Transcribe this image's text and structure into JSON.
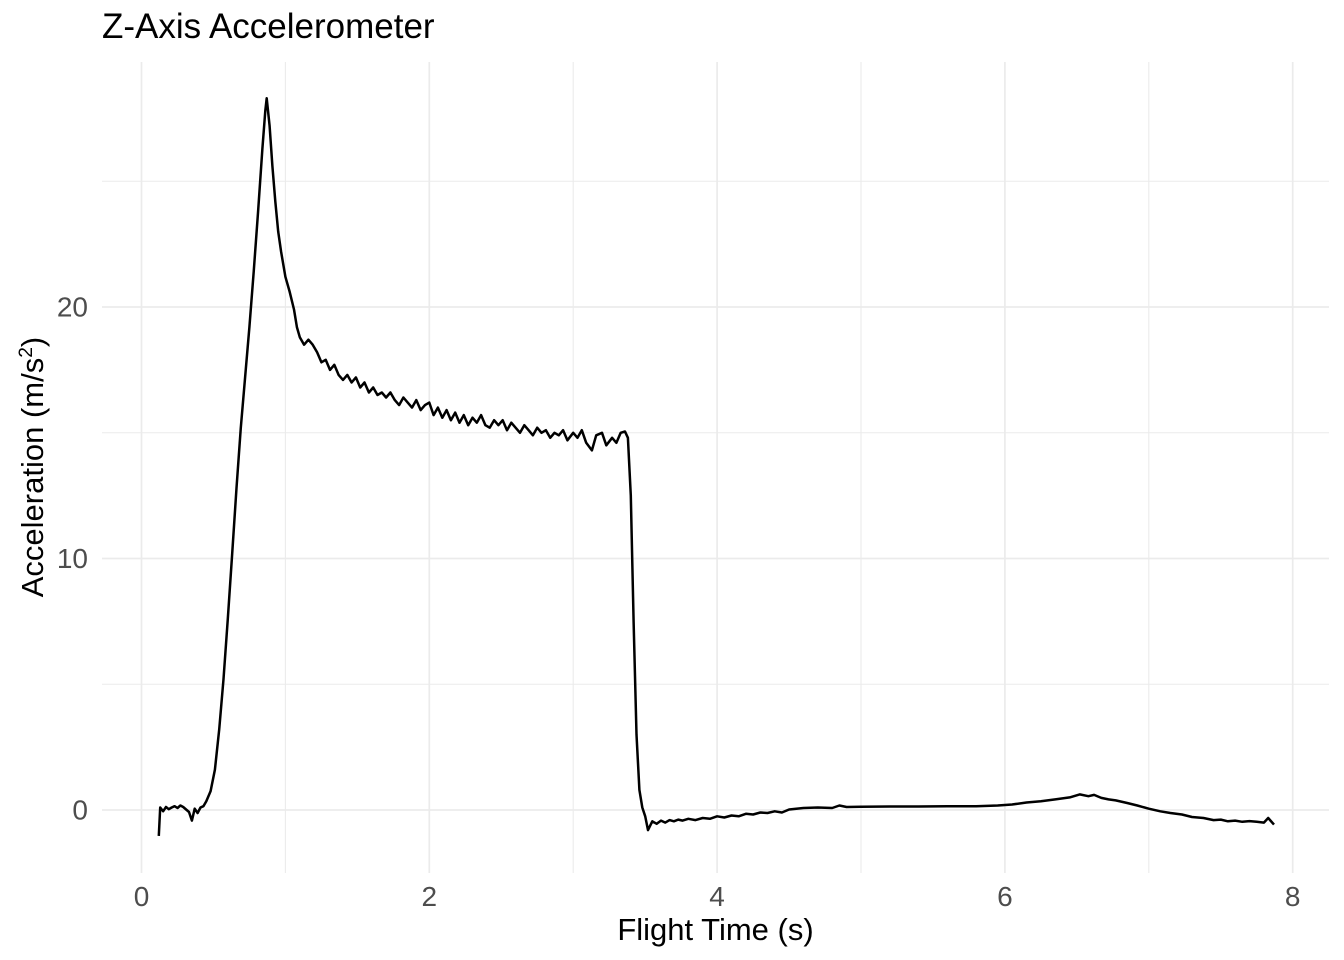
{
  "chart": {
    "title": "Z-Axis Accelerometer",
    "x_axis": {
      "label": "Flight Time (s)",
      "tick_labels": [
        "0",
        "2",
        "4",
        "6",
        "8"
      ],
      "tick_values": [
        0,
        2,
        4,
        6,
        8
      ],
      "minor_values": [
        1,
        3,
        5,
        7
      ]
    },
    "y_axis": {
      "label_text": "Acceleration (m/s²)",
      "label_prefix": "Acceleration (m/s",
      "label_sup": "2",
      "label_suffix": ")",
      "tick_labels": [
        "0",
        "10",
        "20"
      ],
      "tick_values": [
        0,
        10,
        20
      ],
      "minor_values": [
        5,
        15,
        25
      ]
    },
    "colors": {
      "line": "#000000",
      "grid": "#EBEBEB",
      "tick_text": "#4D4D4D",
      "title_text": "#000000",
      "background": "#FFFFFF"
    }
  },
  "chart_data": {
    "type": "line",
    "title": "Z-Axis Accelerometer",
    "xlabel": "Flight Time (s)",
    "ylabel": "Acceleration (m/s²)",
    "xlim": [
      0,
      8
    ],
    "ylim": [
      -2.5,
      29.8
    ],
    "x_ticks": [
      0,
      2,
      4,
      6,
      8
    ],
    "y_ticks": [
      0,
      10,
      20
    ],
    "grid": true,
    "legend": false,
    "series": [
      {
        "name": "z_axis_acceleration",
        "points": [
          [
            0.12,
            -1.03
          ],
          [
            0.13,
            0.1
          ],
          [
            0.15,
            -0.05
          ],
          [
            0.17,
            0.12
          ],
          [
            0.19,
            0.03
          ],
          [
            0.21,
            0.1
          ],
          [
            0.23,
            0.15
          ],
          [
            0.25,
            0.08
          ],
          [
            0.27,
            0.18
          ],
          [
            0.29,
            0.12
          ],
          [
            0.31,
            0.02
          ],
          [
            0.33,
            -0.08
          ],
          [
            0.35,
            -0.42
          ],
          [
            0.37,
            0.05
          ],
          [
            0.39,
            -0.12
          ],
          [
            0.41,
            0.1
          ],
          [
            0.43,
            0.15
          ],
          [
            0.45,
            0.35
          ],
          [
            0.48,
            0.75
          ],
          [
            0.51,
            1.6
          ],
          [
            0.54,
            3.2
          ],
          [
            0.57,
            5.2
          ],
          [
            0.6,
            7.6
          ],
          [
            0.63,
            10.2
          ],
          [
            0.66,
            12.8
          ],
          [
            0.69,
            15.2
          ],
          [
            0.72,
            17.2
          ],
          [
            0.75,
            19.2
          ],
          [
            0.78,
            21.4
          ],
          [
            0.81,
            23.8
          ],
          [
            0.84,
            26.3
          ],
          [
            0.86,
            27.8
          ],
          [
            0.87,
            28.3
          ],
          [
            0.89,
            27.2
          ],
          [
            0.91,
            25.6
          ],
          [
            0.93,
            24.2
          ],
          [
            0.95,
            23.0
          ],
          [
            0.97,
            22.2
          ],
          [
            1.0,
            21.2
          ],
          [
            1.03,
            20.6
          ],
          [
            1.06,
            19.9
          ],
          [
            1.08,
            19.2
          ],
          [
            1.1,
            18.8
          ],
          [
            1.13,
            18.5
          ],
          [
            1.16,
            18.7
          ],
          [
            1.19,
            18.5
          ],
          [
            1.22,
            18.2
          ],
          [
            1.25,
            17.8
          ],
          [
            1.28,
            17.9
          ],
          [
            1.31,
            17.5
          ],
          [
            1.34,
            17.7
          ],
          [
            1.37,
            17.3
          ],
          [
            1.4,
            17.1
          ],
          [
            1.43,
            17.3
          ],
          [
            1.46,
            17.0
          ],
          [
            1.49,
            17.2
          ],
          [
            1.52,
            16.8
          ],
          [
            1.55,
            17.0
          ],
          [
            1.58,
            16.6
          ],
          [
            1.61,
            16.8
          ],
          [
            1.64,
            16.5
          ],
          [
            1.67,
            16.6
          ],
          [
            1.7,
            16.4
          ],
          [
            1.73,
            16.6
          ],
          [
            1.76,
            16.3
          ],
          [
            1.79,
            16.1
          ],
          [
            1.82,
            16.4
          ],
          [
            1.85,
            16.2
          ],
          [
            1.88,
            16.0
          ],
          [
            1.91,
            16.3
          ],
          [
            1.94,
            15.9
          ],
          [
            1.97,
            16.1
          ],
          [
            2.0,
            16.2
          ],
          [
            2.03,
            15.7
          ],
          [
            2.06,
            16.0
          ],
          [
            2.09,
            15.6
          ],
          [
            2.12,
            15.9
          ],
          [
            2.15,
            15.5
          ],
          [
            2.18,
            15.8
          ],
          [
            2.21,
            15.4
          ],
          [
            2.24,
            15.7
          ],
          [
            2.27,
            15.3
          ],
          [
            2.3,
            15.6
          ],
          [
            2.33,
            15.4
          ],
          [
            2.36,
            15.7
          ],
          [
            2.39,
            15.3
          ],
          [
            2.42,
            15.2
          ],
          [
            2.45,
            15.5
          ],
          [
            2.48,
            15.3
          ],
          [
            2.51,
            15.5
          ],
          [
            2.54,
            15.1
          ],
          [
            2.57,
            15.4
          ],
          [
            2.6,
            15.2
          ],
          [
            2.63,
            15.0
          ],
          [
            2.66,
            15.3
          ],
          [
            2.69,
            15.1
          ],
          [
            2.72,
            14.9
          ],
          [
            2.75,
            15.2
          ],
          [
            2.78,
            15.0
          ],
          [
            2.81,
            15.1
          ],
          [
            2.84,
            14.8
          ],
          [
            2.87,
            15.0
          ],
          [
            2.9,
            14.9
          ],
          [
            2.93,
            15.1
          ],
          [
            2.96,
            14.7
          ],
          [
            3.0,
            15.0
          ],
          [
            3.03,
            14.8
          ],
          [
            3.06,
            15.1
          ],
          [
            3.09,
            14.6
          ],
          [
            3.13,
            14.3
          ],
          [
            3.16,
            14.9
          ],
          [
            3.2,
            15.0
          ],
          [
            3.23,
            14.5
          ],
          [
            3.27,
            14.8
          ],
          [
            3.3,
            14.6
          ],
          [
            3.33,
            15.0
          ],
          [
            3.36,
            15.05
          ],
          [
            3.38,
            14.8
          ],
          [
            3.4,
            12.5
          ],
          [
            3.42,
            7.5
          ],
          [
            3.44,
            3.0
          ],
          [
            3.46,
            0.8
          ],
          [
            3.48,
            0.1
          ],
          [
            3.5,
            -0.25
          ],
          [
            3.52,
            -0.8
          ],
          [
            3.55,
            -0.45
          ],
          [
            3.58,
            -0.55
          ],
          [
            3.61,
            -0.42
          ],
          [
            3.64,
            -0.5
          ],
          [
            3.67,
            -0.4
          ],
          [
            3.7,
            -0.45
          ],
          [
            3.73,
            -0.38
          ],
          [
            3.76,
            -0.42
          ],
          [
            3.8,
            -0.35
          ],
          [
            3.85,
            -0.4
          ],
          [
            3.9,
            -0.32
          ],
          [
            3.95,
            -0.35
          ],
          [
            4.0,
            -0.25
          ],
          [
            4.05,
            -0.3
          ],
          [
            4.1,
            -0.22
          ],
          [
            4.15,
            -0.25
          ],
          [
            4.2,
            -0.15
          ],
          [
            4.25,
            -0.18
          ],
          [
            4.3,
            -0.1
          ],
          [
            4.35,
            -0.12
          ],
          [
            4.4,
            -0.05
          ],
          [
            4.45,
            -0.1
          ],
          [
            4.5,
            0.02
          ],
          [
            4.55,
            0.05
          ],
          [
            4.6,
            0.08
          ],
          [
            4.7,
            0.1
          ],
          [
            4.8,
            0.08
          ],
          [
            4.85,
            0.18
          ],
          [
            4.9,
            0.12
          ],
          [
            5.0,
            0.13
          ],
          [
            5.2,
            0.14
          ],
          [
            5.4,
            0.14
          ],
          [
            5.6,
            0.15
          ],
          [
            5.8,
            0.15
          ],
          [
            5.95,
            0.18
          ],
          [
            6.05,
            0.22
          ],
          [
            6.15,
            0.3
          ],
          [
            6.25,
            0.35
          ],
          [
            6.35,
            0.42
          ],
          [
            6.45,
            0.5
          ],
          [
            6.52,
            0.62
          ],
          [
            6.58,
            0.55
          ],
          [
            6.62,
            0.6
          ],
          [
            6.67,
            0.48
          ],
          [
            6.72,
            0.42
          ],
          [
            6.77,
            0.38
          ],
          [
            6.85,
            0.28
          ],
          [
            6.92,
            0.18
          ],
          [
            7.0,
            0.05
          ],
          [
            7.08,
            -0.05
          ],
          [
            7.15,
            -0.12
          ],
          [
            7.23,
            -0.18
          ],
          [
            7.3,
            -0.28
          ],
          [
            7.38,
            -0.32
          ],
          [
            7.45,
            -0.4
          ],
          [
            7.5,
            -0.38
          ],
          [
            7.55,
            -0.45
          ],
          [
            7.6,
            -0.42
          ],
          [
            7.65,
            -0.47
          ],
          [
            7.7,
            -0.44
          ],
          [
            7.75,
            -0.47
          ],
          [
            7.8,
            -0.5
          ],
          [
            7.83,
            -0.32
          ],
          [
            7.87,
            -0.58
          ]
        ]
      }
    ]
  }
}
